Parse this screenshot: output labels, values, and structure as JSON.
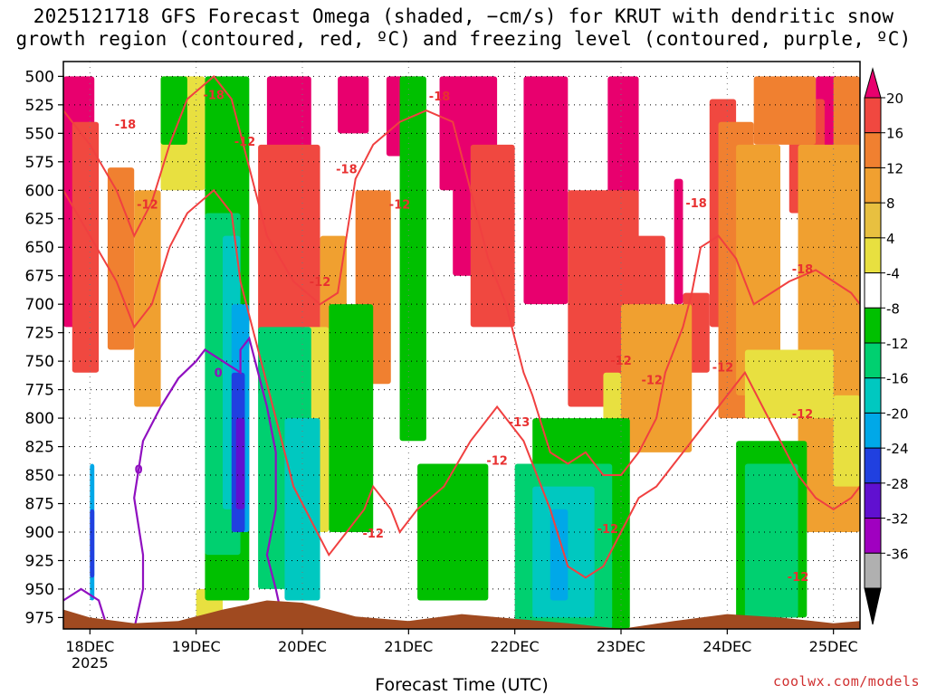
{
  "chart_data": {
    "type": "heatmap",
    "title_line1": "2025121718 GFS Forecast Omega (shaded, −cm/s) for KRUT with dendritic snow",
    "title_line2": "growth region (contoured, red, ºC) and freezing level (contoured, purple, ºC)",
    "xlabel": "Forecast Time (UTC)",
    "credit": "coolwx.com/models",
    "x_ticks": [
      {
        "label": "18DEC",
        "sub": "2025",
        "t": 0
      },
      {
        "label": "19DEC",
        "sub": "",
        "t": 24
      },
      {
        "label": "20DEC",
        "sub": "",
        "t": 48
      },
      {
        "label": "21DEC",
        "sub": "",
        "t": 72
      },
      {
        "label": "22DEC",
        "sub": "",
        "t": 96
      },
      {
        "label": "23DEC",
        "sub": "",
        "t": 120
      },
      {
        "label": "24DEC",
        "sub": "",
        "t": 144
      },
      {
        "label": "25DEC",
        "sub": "",
        "t": 168
      }
    ],
    "x_range_hours": [
      -6,
      174
    ],
    "y_ticks": [
      500,
      525,
      550,
      575,
      600,
      625,
      650,
      675,
      700,
      725,
      750,
      775,
      800,
      825,
      850,
      875,
      900,
      925,
      950,
      975
    ],
    "y_range_hpa": [
      487,
      985
    ],
    "colorbar": {
      "levels": [
        "20",
        "16",
        "12",
        "8",
        "4",
        "-4",
        "-8",
        "-12",
        "-16",
        "-20",
        "-24",
        "-28",
        "-32",
        "-36"
      ],
      "colors": [
        "#e8006e",
        "#f04840",
        "#f08030",
        "#f0a030",
        "#e8c040",
        "#e8e040",
        "#ffffff",
        "#00c000",
        "#00d070",
        "#00c8c0",
        "#00a8e8",
        "#2040e0",
        "#6010d0",
        "#a000c0",
        "#b0b0b0",
        "#000000"
      ]
    },
    "omega_regions": [
      {
        "name": "magenta",
        "level": 20,
        "color": "#e8006e",
        "segments": [
          [
            -6,
            1,
            500,
            720
          ],
          [
            40,
            50,
            500,
            690
          ],
          [
            56,
            63,
            500,
            550
          ],
          [
            67,
            74,
            500,
            570
          ],
          [
            79,
            84,
            500,
            600
          ],
          [
            82,
            92,
            500,
            675
          ],
          [
            98,
            108,
            500,
            700
          ],
          [
            117,
            124,
            500,
            760
          ],
          [
            132,
            134,
            590,
            700
          ],
          [
            164,
            172,
            500,
            650
          ]
        ]
      },
      {
        "name": "orange-red",
        "level": 16,
        "color": "#f04840",
        "segments": [
          [
            -4,
            2,
            540,
            760
          ],
          [
            38,
            52,
            560,
            780
          ],
          [
            86,
            96,
            560,
            720
          ],
          [
            108,
            124,
            600,
            790
          ],
          [
            120,
            130,
            640,
            760
          ],
          [
            134,
            140,
            690,
            760
          ],
          [
            140,
            146,
            520,
            720
          ],
          [
            158,
            166,
            520,
            620
          ]
        ]
      },
      {
        "name": "orange",
        "level": 12,
        "color": "#f08030",
        "segments": [
          [
            4,
            10,
            580,
            740
          ],
          [
            60,
            68,
            600,
            770
          ],
          [
            142,
            150,
            540,
            800
          ],
          [
            150,
            164,
            500,
            560
          ],
          [
            168,
            174,
            500,
            640
          ]
        ]
      },
      {
        "name": "gold",
        "level": 8,
        "color": "#f0a030",
        "segments": [
          [
            10,
            16,
            600,
            790
          ],
          [
            52,
            58,
            640,
            810
          ],
          [
            120,
            136,
            700,
            830
          ],
          [
            146,
            156,
            560,
            780
          ],
          [
            160,
            174,
            560,
            900
          ]
        ]
      },
      {
        "name": "yellow",
        "level": 4,
        "color": "#e8e040",
        "segments": [
          [
            16,
            26,
            500,
            600
          ],
          [
            24,
            30,
            950,
            985
          ],
          [
            48,
            54,
            720,
            900
          ],
          [
            116,
            120,
            760,
            830
          ],
          [
            148,
            168,
            740,
            800
          ],
          [
            168,
            174,
            780,
            860
          ]
        ]
      },
      {
        "name": "green",
        "level": -4,
        "color": "#00c000",
        "segments": [
          [
            16,
            22,
            500,
            560
          ],
          [
            26,
            36,
            500,
            960
          ],
          [
            54,
            64,
            700,
            900
          ],
          [
            70,
            76,
            500,
            820
          ],
          [
            74,
            90,
            840,
            960
          ],
          [
            100,
            122,
            800,
            985
          ],
          [
            146,
            162,
            820,
            975
          ]
        ]
      },
      {
        "name": "sea-green",
        "level": -8,
        "color": "#00d070",
        "segments": [
          [
            26,
            34,
            620,
            920
          ],
          [
            38,
            50,
            720,
            950
          ],
          [
            96,
            118,
            840,
            985
          ],
          [
            148,
            160,
            840,
            975
          ]
        ]
      },
      {
        "name": "cyan",
        "level": -12,
        "color": "#00c8c0",
        "segments": [
          [
            30,
            34,
            640,
            880
          ],
          [
            44,
            52,
            800,
            960
          ],
          [
            100,
            114,
            860,
            975
          ]
        ]
      },
      {
        "name": "light-blue",
        "level": -16,
        "color": "#00a8e8",
        "segments": [
          [
            0,
            1,
            840,
            960
          ],
          [
            32,
            36,
            700,
            900
          ],
          [
            104,
            108,
            880,
            960
          ]
        ]
      },
      {
        "name": "blue",
        "level": -20,
        "color": "#2040e0",
        "segments": [
          [
            32,
            35,
            760,
            900
          ],
          [
            0,
            1,
            880,
            940
          ]
        ]
      },
      {
        "name": "violet",
        "level": -24,
        "color": "#6010d0",
        "segments": [
          [
            33,
            35,
            800,
            880
          ]
        ]
      }
    ],
    "dgz_contours": [
      {
        "label": "-18",
        "color": "#f04040",
        "points": [
          [
            -6,
            530
          ],
          [
            0,
            560
          ],
          [
            6,
            600
          ],
          [
            10,
            640
          ],
          [
            14,
            610
          ],
          [
            18,
            560
          ],
          [
            22,
            520
          ],
          [
            28,
            500
          ],
          [
            32,
            520
          ],
          [
            36,
            580
          ],
          [
            40,
            640
          ],
          [
            46,
            680
          ],
          [
            52,
            700
          ],
          [
            56,
            690
          ],
          [
            58,
            640
          ],
          [
            60,
            590
          ],
          [
            64,
            560
          ],
          [
            70,
            540
          ],
          [
            76,
            530
          ],
          [
            82,
            540
          ],
          [
            86,
            600
          ],
          [
            90,
            660
          ],
          [
            94,
            700
          ],
          [
            98,
            760
          ],
          [
            100,
            780
          ],
          [
            104,
            830
          ],
          [
            108,
            840
          ],
          [
            112,
            830
          ],
          [
            116,
            850
          ],
          [
            120,
            850
          ],
          [
            124,
            830
          ],
          [
            128,
            800
          ],
          [
            130,
            760
          ],
          [
            134,
            720
          ],
          [
            136,
            690
          ],
          [
            138,
            650
          ],
          [
            142,
            640
          ],
          [
            146,
            660
          ],
          [
            150,
            700
          ],
          [
            154,
            690
          ],
          [
            158,
            680
          ],
          [
            164,
            670
          ],
          [
            168,
            680
          ],
          [
            172,
            690
          ],
          [
            174,
            700
          ]
        ]
      },
      {
        "label": "-12",
        "color": "#f04040",
        "points": [
          [
            -6,
            600
          ],
          [
            0,
            640
          ],
          [
            6,
            680
          ],
          [
            10,
            720
          ],
          [
            14,
            700
          ],
          [
            18,
            650
          ],
          [
            22,
            620
          ],
          [
            28,
            600
          ],
          [
            32,
            620
          ],
          [
            34,
            680
          ],
          [
            38,
            740
          ],
          [
            42,
            800
          ],
          [
            46,
            860
          ],
          [
            50,
            890
          ],
          [
            54,
            920
          ],
          [
            58,
            900
          ],
          [
            62,
            880
          ],
          [
            64,
            860
          ],
          [
            68,
            880
          ],
          [
            70,
            900
          ],
          [
            74,
            880
          ],
          [
            80,
            860
          ],
          [
            86,
            820
          ],
          [
            92,
            790
          ],
          [
            98,
            820
          ],
          [
            104,
            880
          ],
          [
            108,
            930
          ],
          [
            112,
            940
          ],
          [
            116,
            930
          ],
          [
            120,
            900
          ],
          [
            124,
            870
          ],
          [
            128,
            860
          ],
          [
            132,
            840
          ],
          [
            136,
            820
          ],
          [
            140,
            800
          ],
          [
            144,
            780
          ],
          [
            148,
            760
          ],
          [
            152,
            790
          ],
          [
            156,
            820
          ],
          [
            160,
            850
          ],
          [
            164,
            870
          ],
          [
            168,
            880
          ],
          [
            172,
            870
          ],
          [
            174,
            860
          ]
        ]
      }
    ],
    "dgz_labels": [
      {
        "text": "-18",
        "t": 28,
        "p": 516
      },
      {
        "text": "-18",
        "t": 8,
        "p": 542
      },
      {
        "text": "-12",
        "t": 35,
        "p": 557
      },
      {
        "text": "-18",
        "t": 58,
        "p": 581
      },
      {
        "text": "-12",
        "t": 13,
        "p": 612
      },
      {
        "text": "-12",
        "t": 70,
        "p": 612
      },
      {
        "text": "-18",
        "t": 79,
        "p": 517
      },
      {
        "text": "-18",
        "t": 137,
        "p": 611
      },
      {
        "text": "-18",
        "t": 161,
        "p": 669
      },
      {
        "text": "-12",
        "t": 52,
        "p": 680
      },
      {
        "text": "-12",
        "t": 120,
        "p": 749
      },
      {
        "text": "-12",
        "t": 143,
        "p": 755
      },
      {
        "text": "-12",
        "t": 127,
        "p": 766
      },
      {
        "text": "-12",
        "t": 161,
        "p": 796
      },
      {
        "text": "-13",
        "t": 97,
        "p": 803
      },
      {
        "text": "-12",
        "t": 92,
        "p": 837
      },
      {
        "text": "-12",
        "t": 64,
        "p": 901
      },
      {
        "text": "-12",
        "t": 117,
        "p": 897
      },
      {
        "text": "-12",
        "t": 160,
        "p": 939
      }
    ],
    "freezing_contour": {
      "label": "0",
      "color": "#9010c0",
      "points": [
        [
          -6,
          960
        ],
        [
          -2,
          950
        ],
        [
          2,
          960
        ],
        [
          4,
          985
        ]
      ],
      "points2": [
        [
          10,
          985
        ],
        [
          12,
          950
        ],
        [
          12,
          920
        ],
        [
          10,
          870
        ],
        [
          12,
          820
        ],
        [
          16,
          790
        ],
        [
          20,
          765
        ],
        [
          24,
          750
        ],
        [
          26,
          740
        ],
        [
          30,
          750
        ],
        [
          34,
          760
        ],
        [
          34,
          740
        ],
        [
          36,
          730
        ],
        [
          38,
          760
        ],
        [
          40,
          790
        ],
        [
          42,
          830
        ],
        [
          42,
          880
        ],
        [
          40,
          920
        ],
        [
          42,
          950
        ],
        [
          44,
          985
        ]
      ],
      "label_points": [
        {
          "text": "0",
          "t": 11,
          "p": 845
        },
        {
          "text": "0",
          "t": 29,
          "p": 760
        }
      ]
    },
    "terrain": {
      "color": "#a04a20",
      "points": [
        [
          -6,
          968
        ],
        [
          0,
          975
        ],
        [
          10,
          980
        ],
        [
          20,
          978
        ],
        [
          30,
          968
        ],
        [
          40,
          960
        ],
        [
          48,
          962
        ],
        [
          60,
          974
        ],
        [
          72,
          978
        ],
        [
          84,
          972
        ],
        [
          96,
          976
        ],
        [
          108,
          980
        ],
        [
          120,
          985
        ],
        [
          132,
          978
        ],
        [
          144,
          972
        ],
        [
          156,
          975
        ],
        [
          168,
          980
        ],
        [
          174,
          978
        ]
      ]
    }
  }
}
